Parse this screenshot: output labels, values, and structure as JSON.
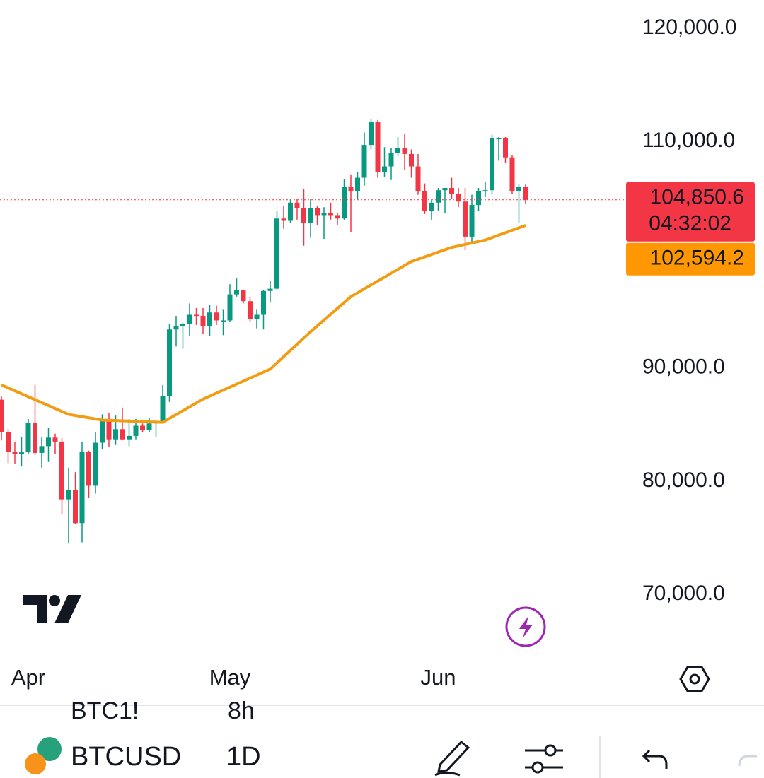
{
  "chart_data": {
    "type": "candlestick",
    "categories": [
      null,
      null,
      null,
      null,
      "Apr",
      null,
      null,
      null,
      null,
      null,
      null,
      null,
      null,
      null,
      null,
      null,
      null,
      null,
      null,
      null,
      null,
      null,
      null,
      null,
      null,
      null,
      null,
      null,
      null,
      null,
      null,
      null,
      null,
      null,
      "May",
      null,
      null,
      null,
      null,
      null,
      null,
      null,
      null,
      null,
      null,
      null,
      null,
      null,
      null,
      null,
      null,
      null,
      null,
      null,
      null,
      null,
      null,
      null,
      null,
      null,
      null,
      null,
      null,
      null,
      null,
      "Jun",
      null,
      null,
      null,
      null,
      null,
      null,
      null,
      null,
      null,
      null,
      null,
      null,
      null
    ],
    "open": [
      87200,
      84350,
      82600,
      82400,
      82550,
      85150,
      82500,
      83100,
      83850,
      83500,
      78400,
      79200,
      76300,
      82600,
      79600,
      83400,
      85300,
      83700,
      84600,
      83700,
      84000,
      84900,
      84500,
      85100,
      85200,
      87500,
      93400,
      93700,
      93900,
      94700,
      94600,
      93700,
      94900,
      94200,
      94200,
      96500,
      96900,
      95900,
      94300,
      94700,
      96800,
      97000,
      103200,
      103000,
      104600,
      104100,
      102800,
      104100,
      103500,
      103700,
      103500,
      103200,
      106000,
      105600,
      106800,
      109700,
      111700,
      107300,
      107800,
      109000,
      109400,
      108900,
      107800,
      105600,
      103900,
      104600,
      105700,
      105900,
      105400,
      104700,
      101600,
      104400,
      105600,
      105700,
      110300,
      110300,
      108600,
      105600,
      106000
    ],
    "high": [
      87500,
      84600,
      83500,
      83900,
      85500,
      88500,
      83900,
      84700,
      84200,
      83800,
      81200,
      80800,
      83500,
      82700,
      84300,
      85900,
      86000,
      85800,
      86500,
      85500,
      85500,
      85100,
      85600,
      85300,
      88500,
      93900,
      94600,
      94000,
      95700,
      95300,
      95300,
      95600,
      95500,
      95200,
      97400,
      97900,
      96900,
      96300,
      95200,
      96900,
      97700,
      103900,
      104300,
      104900,
      104900,
      105800,
      104900,
      104300,
      104200,
      104600,
      103700,
      106700,
      107100,
      107300,
      110800,
      112000,
      111900,
      109500,
      109400,
      110400,
      110700,
      109300,
      108900,
      106300,
      104900,
      105900,
      105900,
      106800,
      105900,
      105900,
      105300,
      105900,
      106400,
      110600,
      110400,
      110400,
      108800,
      106200,
      106200
    ],
    "low": [
      83600,
      81600,
      81500,
      81300,
      82400,
      82300,
      81200,
      81700,
      82400,
      77100,
      74500,
      76200,
      74600,
      78500,
      78900,
      82800,
      83000,
      83200,
      83600,
      83100,
      83700,
      84300,
      84300,
      83900,
      85100,
      87000,
      91900,
      91700,
      92800,
      93800,
      93000,
      92800,
      93800,
      92900,
      94100,
      96300,
      95700,
      94100,
      93500,
      93400,
      95800,
      96900,
      102300,
      102800,
      103100,
      100800,
      101500,
      102600,
      101400,
      103100,
      102600,
      103100,
      102000,
      104900,
      106100,
      109300,
      106800,
      106900,
      106600,
      108700,
      107500,
      106800,
      105300,
      103600,
      103100,
      103900,
      103700,
      104900,
      104200,
      100400,
      101100,
      103900,
      105100,
      105300,
      108300,
      108100,
      105400,
      102800,
      104500
    ],
    "close": [
      84350,
      82600,
      82400,
      82550,
      85150,
      82500,
      83100,
      83850,
      83500,
      78400,
      79200,
      76300,
      82600,
      79600,
      83400,
      85300,
      83700,
      84600,
      83700,
      84000,
      84900,
      84500,
      85100,
      85200,
      87500,
      93400,
      93700,
      93900,
      94700,
      94600,
      93700,
      94900,
      94200,
      94200,
      96500,
      96900,
      95900,
      94300,
      94700,
      96800,
      97000,
      103200,
      103000,
      104600,
      104100,
      102800,
      104100,
      103500,
      103700,
      103500,
      103200,
      106000,
      105600,
      106800,
      109700,
      111700,
      107300,
      107800,
      109000,
      109400,
      108900,
      107800,
      105600,
      103900,
      104600,
      105700,
      105900,
      105400,
      104700,
      101600,
      104400,
      105600,
      105700,
      110300,
      110300,
      108600,
      105600,
      106000,
      104850.6
    ],
    "up_color": "#089981",
    "down_color": "#f23645",
    "overlay": {
      "type": "line",
      "color": "#f39c12",
      "values": [
        88500,
        88240,
        87980,
        87720,
        87460,
        87200,
        86940,
        86680,
        86420,
        86160,
        85900,
        85800,
        85700,
        85600,
        85500,
        85400,
        85378,
        85356,
        85333,
        85311,
        85289,
        85267,
        85244,
        85222,
        85200,
        85542,
        85883,
        86225,
        86567,
        86908,
        87250,
        87515,
        87780,
        88045,
        88310,
        88575,
        88840,
        89105,
        89370,
        89635,
        89900,
        90450,
        91000,
        91550,
        92100,
        92650,
        93200,
        93717,
        94233,
        94750,
        95267,
        95783,
        96300,
        96644,
        96989,
        97333,
        97678,
        98022,
        98367,
        98711,
        99056,
        99400,
        99608,
        99817,
        100025,
        100233,
        100442,
        100650,
        100780,
        100910,
        101040,
        101170,
        101300,
        101516,
        101731,
        101947,
        102163,
        102378,
        102594.2
      ],
      "value_label": {
        "value": 102594.2,
        "label": "102,594.2"
      }
    },
    "price_label": {
      "value": 104850.6,
      "label": "104,850.6"
    },
    "countdown": "04:32:02",
    "ylim": [
      64460,
      122500
    ],
    "yticks": [
      {
        "value": 70000,
        "label": "70,000.0"
      },
      {
        "value": 80000,
        "label": "80,000.0"
      },
      {
        "value": 90000,
        "label": "90,000.0"
      },
      {
        "value": 110000,
        "label": "110,000.0"
      },
      {
        "value": 120000,
        "label": "120,000.0"
      }
    ]
  },
  "toolbar": {
    "faded_symbol": "BTC1!",
    "faded_interval": "8h",
    "symbol": "BTCUSD",
    "interval": "1D"
  }
}
